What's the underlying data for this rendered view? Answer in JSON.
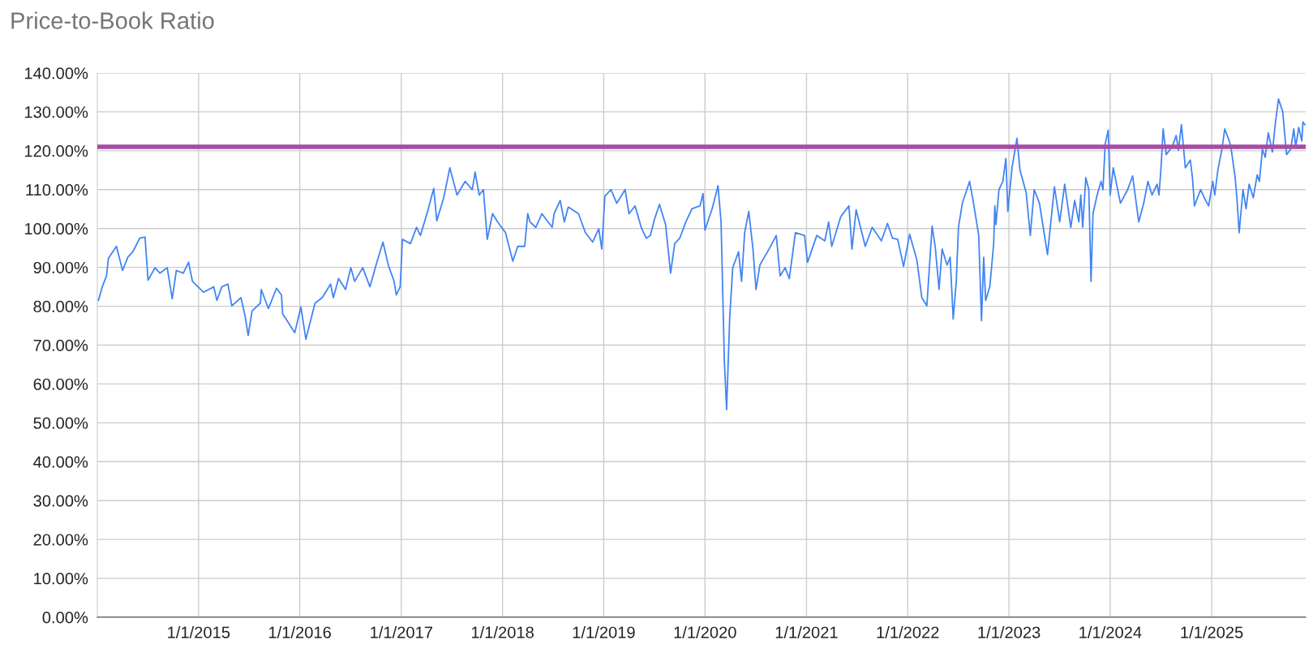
{
  "chart_data": {
    "type": "line",
    "title": "Price-to-Book Ratio",
    "xlim": [
      "2014-01-01",
      "2025-12-06"
    ],
    "xticks": [
      {
        "value": "2015-01-01",
        "label": "1/1/2015"
      },
      {
        "value": "2016-01-01",
        "label": "1/1/2016"
      },
      {
        "value": "2017-01-01",
        "label": "1/1/2017"
      },
      {
        "value": "2018-01-01",
        "label": "1/1/2018"
      },
      {
        "value": "2019-01-01",
        "label": "1/1/2019"
      },
      {
        "value": "2020-01-01",
        "label": "1/1/2020"
      },
      {
        "value": "2021-01-01",
        "label": "1/1/2021"
      },
      {
        "value": "2022-01-01",
        "label": "1/1/2022"
      },
      {
        "value": "2023-01-01",
        "label": "1/1/2023"
      },
      {
        "value": "2024-01-01",
        "label": "1/1/2024"
      },
      {
        "value": "2025-01-01",
        "label": "1/1/2025"
      }
    ],
    "ylim": [
      0,
      140
    ],
    "yticks": [
      {
        "value": 0,
        "label": "0.00%"
      },
      {
        "value": 10,
        "label": "10.00%"
      },
      {
        "value": 20,
        "label": "20.00%"
      },
      {
        "value": 30,
        "label": "30.00%"
      },
      {
        "value": 40,
        "label": "40.00%"
      },
      {
        "value": 50,
        "label": "50.00%"
      },
      {
        "value": 60,
        "label": "60.00%"
      },
      {
        "value": 70,
        "label": "70.00%"
      },
      {
        "value": 80,
        "label": "80.00%"
      },
      {
        "value": 90,
        "label": "90.00%"
      },
      {
        "value": 100,
        "label": "100.00%"
      },
      {
        "value": 110,
        "label": "110.00%"
      },
      {
        "value": 120,
        "label": "120.00%"
      },
      {
        "value": 130,
        "label": "130.00%"
      },
      {
        "value": 140,
        "label": "140.00%"
      }
    ],
    "grid": true,
    "legend": false,
    "marker": "none",
    "line_style": "solid",
    "ref_lines": [
      {
        "axis": "y",
        "value": 121.0,
        "color": "#a64ca6",
        "line_style": "solid"
      }
    ],
    "series": [
      {
        "color": "#4285f4",
        "x": [
          "2014-01-05",
          "2014-01-19",
          "2014-02-03",
          "2014-02-10",
          "2014-03-11",
          "2014-04-02",
          "2014-04-21",
          "2014-05-09",
          "2014-06-03",
          "2014-06-22",
          "2014-07-03",
          "2014-07-28",
          "2014-08-15",
          "2014-09-10",
          "2014-09-28",
          "2014-10-13",
          "2014-11-07",
          "2014-11-26",
          "2014-12-10",
          "2015-01-19",
          "2015-02-25",
          "2015-03-08",
          "2015-03-26",
          "2015-04-17",
          "2015-05-01",
          "2015-06-03",
          "2015-06-18",
          "2015-06-29",
          "2015-07-13",
          "2015-08-12",
          "2015-08-15",
          "2015-09-10",
          "2015-10-09",
          "2015-10-27",
          "2015-10-31",
          "2015-12-14",
          "2016-01-05",
          "2016-01-23",
          "2016-02-25",
          "2016-03-22",
          "2016-04-21",
          "2016-05-01",
          "2016-05-20",
          "2016-06-14",
          "2016-07-03",
          "2016-07-17",
          "2016-08-15",
          "2016-09-10",
          "2016-10-02",
          "2016-10-27",
          "2016-11-15",
          "2016-12-06",
          "2016-12-14",
          "2016-12-28",
          "2017-01-05",
          "2017-02-03",
          "2017-02-25",
          "2017-03-11",
          "2017-04-06",
          "2017-04-28",
          "2017-05-09",
          "2017-06-03",
          "2017-06-25",
          "2017-07-21",
          "2017-08-19",
          "2017-09-14",
          "2017-09-24",
          "2017-10-09",
          "2017-10-24",
          "2017-11-07",
          "2017-11-26",
          "2017-12-14",
          "2018-01-12",
          "2018-02-07",
          "2018-02-25",
          "2018-03-22",
          "2018-04-02",
          "2018-04-10",
          "2018-05-01",
          "2018-05-23",
          "2018-06-29",
          "2018-07-06",
          "2018-07-28",
          "2018-08-12",
          "2018-08-26",
          "2018-10-02",
          "2018-10-27",
          "2018-11-22",
          "2018-12-14",
          "2018-12-25",
          "2019-01-05",
          "2019-01-27",
          "2019-02-17",
          "2019-03-19",
          "2019-04-02",
          "2019-04-24",
          "2019-05-16",
          "2019-06-03",
          "2019-06-18",
          "2019-07-03",
          "2019-07-21",
          "2019-08-12",
          "2019-08-30",
          "2019-09-14",
          "2019-10-02",
          "2019-10-24",
          "2019-11-15",
          "2019-12-14",
          "2019-12-25",
          "2020-01-01",
          "2020-01-27",
          "2020-02-17",
          "2020-02-28",
          "2020-03-11",
          "2020-03-19",
          "2020-03-30",
          "2020-04-10",
          "2020-05-01",
          "2020-05-12",
          "2020-05-23",
          "2020-06-07",
          "2020-06-22",
          "2020-07-03",
          "2020-07-17",
          "2020-08-19",
          "2020-09-14",
          "2020-09-28",
          "2020-10-16",
          "2020-10-31",
          "2020-11-22",
          "2020-12-25",
          "2021-01-05",
          "2021-02-07",
          "2021-03-08",
          "2021-03-22",
          "2021-04-02",
          "2021-05-05",
          "2021-06-03",
          "2021-06-14",
          "2021-06-29",
          "2021-08-01",
          "2021-08-26",
          "2021-09-28",
          "2021-10-20",
          "2021-11-07",
          "2021-11-26",
          "2021-12-17",
          "2022-01-08",
          "2022-02-03",
          "2022-02-21",
          "2022-03-11",
          "2022-03-30",
          "2022-04-10",
          "2022-04-24",
          "2022-05-05",
          "2022-05-23",
          "2022-06-03",
          "2022-06-14",
          "2022-06-25",
          "2022-07-03",
          "2022-07-17",
          "2022-08-12",
          "2022-08-23",
          "2022-09-03",
          "2022-09-14",
          "2022-09-24",
          "2022-10-02",
          "2022-10-09",
          "2022-10-24",
          "2022-11-07",
          "2022-11-11",
          "2022-11-15",
          "2022-11-26",
          "2022-12-10",
          "2022-12-21",
          "2022-12-28",
          "2023-01-12",
          "2023-01-30",
          "2023-02-10",
          "2023-03-04",
          "2023-03-19",
          "2023-04-02",
          "2023-04-21",
          "2023-05-20",
          "2023-06-14",
          "2023-07-03",
          "2023-07-21",
          "2023-08-12",
          "2023-08-26",
          "2023-09-10",
          "2023-09-17",
          "2023-09-24",
          "2023-10-05",
          "2023-10-16",
          "2023-10-24",
          "2023-10-31",
          "2023-11-15",
          "2023-11-29",
          "2023-12-06",
          "2023-12-14",
          "2023-12-25",
          "2024-01-01",
          "2024-01-12",
          "2024-02-07",
          "2024-03-04",
          "2024-03-22",
          "2024-04-13",
          "2024-05-01",
          "2024-05-16",
          "2024-05-31",
          "2024-06-18",
          "2024-06-25",
          "2024-07-03",
          "2024-07-10",
          "2024-07-21",
          "2024-08-12",
          "2024-08-26",
          "2024-09-03",
          "2024-09-14",
          "2024-09-28",
          "2024-10-16",
          "2024-10-24",
          "2024-10-31",
          "2024-11-22",
          "2024-12-10",
          "2024-12-21",
          "2025-01-05",
          "2025-01-12",
          "2025-01-23",
          "2025-02-07",
          "2025-02-17",
          "2025-03-04",
          "2025-03-11",
          "2025-03-26",
          "2025-04-02",
          "2025-04-10",
          "2025-04-24",
          "2025-05-05",
          "2025-05-16",
          "2025-05-31",
          "2025-06-14",
          "2025-06-22",
          "2025-07-03",
          "2025-07-13",
          "2025-07-24",
          "2025-08-08",
          "2025-08-19",
          "2025-08-30",
          "2025-09-14",
          "2025-09-28",
          "2025-10-13",
          "2025-10-24",
          "2025-10-31",
          "2025-11-11",
          "2025-11-22",
          "2025-11-26",
          "2025-12-03"
        ],
        "values": [
          81.5,
          85.0,
          87.8,
          92.3,
          95.4,
          89.2,
          92.6,
          94.0,
          97.5,
          97.8,
          86.7,
          89.9,
          88.5,
          89.9,
          81.9,
          89.2,
          88.5,
          91.3,
          86.4,
          83.6,
          85.0,
          81.5,
          85.0,
          85.7,
          80.1,
          82.2,
          77.4,
          72.5,
          78.8,
          80.8,
          84.3,
          79.4,
          84.6,
          82.9,
          78.1,
          73.2,
          79.8,
          71.5,
          80.8,
          82.2,
          85.7,
          82.2,
          87.1,
          84.3,
          89.9,
          86.4,
          89.9,
          85.0,
          90.6,
          96.5,
          90.6,
          86.4,
          82.9,
          85.0,
          97.2,
          96.1,
          100.3,
          98.2,
          104.4,
          110.3,
          102.0,
          107.9,
          115.6,
          108.6,
          112.1,
          110.0,
          114.5,
          108.6,
          110.0,
          97.2,
          103.8,
          101.7,
          98.9,
          91.6,
          95.4,
          95.4,
          103.8,
          101.7,
          100.3,
          103.8,
          100.3,
          103.8,
          107.2,
          101.7,
          105.5,
          103.8,
          98.9,
          96.5,
          99.9,
          94.7,
          108.3,
          110.0,
          106.5,
          110.0,
          103.8,
          105.8,
          100.3,
          97.5,
          98.2,
          102.4,
          106.2,
          101.0,
          88.5,
          96.1,
          97.5,
          101.7,
          105.1,
          105.8,
          109.0,
          99.6,
          105.1,
          111.0,
          101.7,
          65.6,
          53.4,
          76.7,
          89.9,
          94.0,
          86.4,
          98.9,
          104.4,
          94.7,
          84.3,
          90.6,
          94.7,
          98.2,
          87.8,
          89.9,
          87.1,
          98.9,
          98.2,
          91.3,
          98.2,
          96.8,
          101.7,
          95.4,
          103.1,
          105.8,
          94.7,
          104.8,
          95.4,
          100.3,
          96.8,
          101.3,
          97.5,
          97.2,
          90.2,
          98.5,
          91.9,
          82.2,
          80.1,
          100.6,
          95.4,
          84.3,
          94.7,
          90.6,
          92.6,
          76.7,
          86.4,
          100.3,
          106.5,
          112.1,
          107.9,
          103.1,
          98.2,
          76.3,
          92.6,
          81.5,
          85.0,
          96.1,
          105.8,
          101.0,
          110.0,
          112.1,
          118.0,
          104.4,
          115.6,
          123.2,
          114.9,
          109.3,
          98.2,
          110.0,
          106.5,
          93.3,
          110.7,
          101.7,
          111.4,
          100.3,
          107.2,
          101.7,
          108.6,
          100.3,
          113.1,
          110.0,
          86.4,
          103.8,
          108.6,
          112.1,
          110.0,
          121.8,
          125.3,
          108.6,
          115.6,
          106.5,
          110.0,
          113.5,
          101.7,
          106.5,
          112.1,
          108.6,
          111.4,
          108.6,
          116.3,
          125.6,
          119.0,
          121.1,
          123.9,
          120.1,
          126.7,
          115.6,
          117.6,
          112.8,
          105.8,
          110.0,
          107.2,
          105.8,
          112.1,
          108.6,
          114.9,
          120.4,
          125.6,
          122.8,
          121.1,
          113.5,
          107.9,
          98.9,
          110.0,
          105.1,
          111.4,
          107.9,
          113.8,
          112.1,
          120.4,
          118.3,
          124.6,
          119.7,
          127.4,
          133.3,
          130.1,
          119.0,
          120.4,
          125.6,
          121.1,
          126.0,
          122.5,
          127.4,
          126.7
        ]
      }
    ]
  }
}
